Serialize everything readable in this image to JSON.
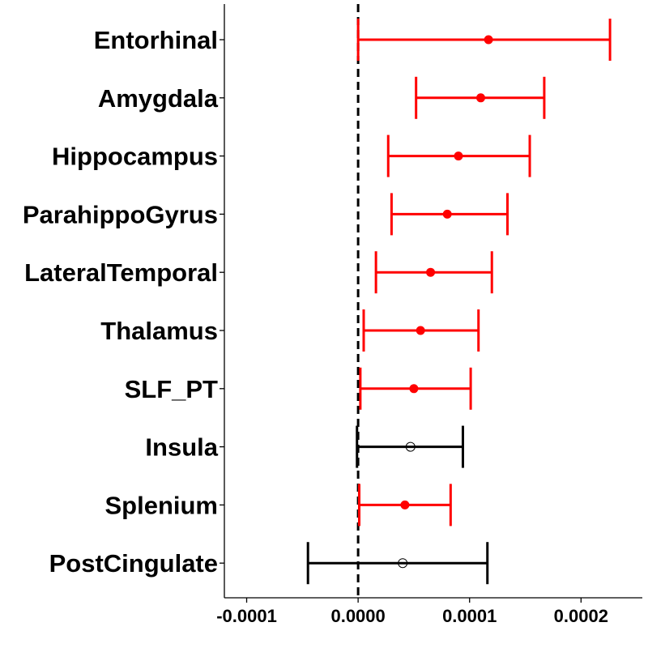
{
  "chart_data": {
    "type": "forest",
    "title": "",
    "xlabel": "",
    "ylabel": "",
    "xlim": [
      -0.00012,
      0.000255
    ],
    "x_ticks": [
      -0.0001,
      0.0,
      0.0001,
      0.0002
    ],
    "x_tick_labels": [
      "-0.0001",
      "0.0000",
      "0.0001",
      "0.0002"
    ],
    "reference_line": 0.0,
    "grid": false,
    "colors": {
      "significant": "#ff0000",
      "nonsignificant": "#000000"
    },
    "rows": [
      {
        "label": "Entorhinal",
        "estimate": 0.000117,
        "lower": 0.0,
        "upper": 0.000226,
        "significant": true
      },
      {
        "label": "Amygdala",
        "estimate": 0.00011,
        "lower": 5.2e-05,
        "upper": 0.000167,
        "significant": true
      },
      {
        "label": "Hippocampus",
        "estimate": 9e-05,
        "lower": 2.7e-05,
        "upper": 0.000154,
        "significant": true
      },
      {
        "label": "ParahippoGyrus",
        "estimate": 8e-05,
        "lower": 3e-05,
        "upper": 0.000134,
        "significant": true
      },
      {
        "label": "LateralTemporal",
        "estimate": 6.5e-05,
        "lower": 1.6e-05,
        "upper": 0.00012,
        "significant": true
      },
      {
        "label": "Thalamus",
        "estimate": 5.6e-05,
        "lower": 5e-06,
        "upper": 0.000108,
        "significant": true
      },
      {
        "label": "SLF_PT",
        "estimate": 5e-05,
        "lower": 2e-06,
        "upper": 0.000101,
        "significant": true
      },
      {
        "label": "Insula",
        "estimate": 4.7e-05,
        "lower": -1e-06,
        "upper": 9.4e-05,
        "significant": false
      },
      {
        "label": "Splenium",
        "estimate": 4.2e-05,
        "lower": 1e-06,
        "upper": 8.3e-05,
        "significant": true
      },
      {
        "label": "PostCingulate",
        "estimate": 4e-05,
        "lower": -4.5e-05,
        "upper": 0.000116,
        "significant": false
      }
    ]
  }
}
